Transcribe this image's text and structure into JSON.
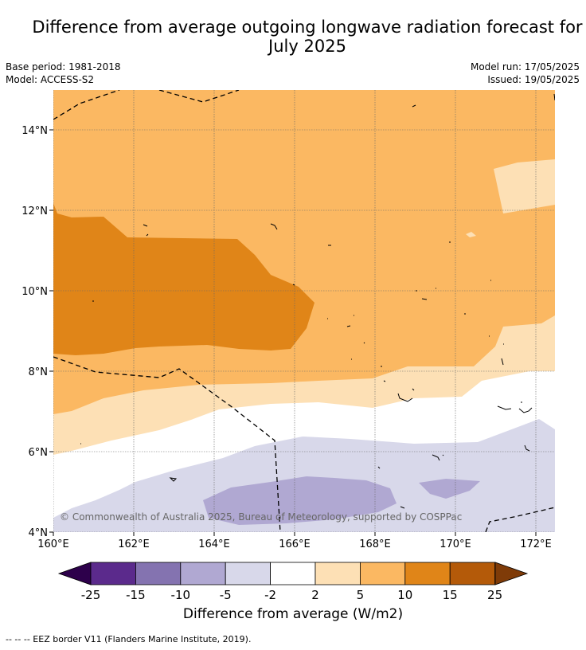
{
  "header": {
    "title_line1": "Difference from average outgoing longwave radiation forecast for",
    "title_line2": "July 2025",
    "base_period": "Base period: 1981-2018",
    "model": "Model: ACCESS-S2",
    "model_run": "Model run: 17/05/2025",
    "issued": "Issued: 19/05/2025"
  },
  "map": {
    "lat_labels": [
      "14°N",
      "12°N",
      "10°N",
      "8°N",
      "6°N",
      "4°N"
    ],
    "lon_labels": [
      "160°E",
      "162°E",
      "164°E",
      "166°E",
      "168°E",
      "170°E",
      "172°E"
    ],
    "copyright": "© Commonwealth of Australia 2025, Bureau of Meteorology, supported by COSPPac"
  },
  "colorbar": {
    "title": "Difference from average (W/m2)",
    "ticks": [
      "-25",
      "-15",
      "-10",
      "-5",
      "-2",
      "2",
      "5",
      "10",
      "15",
      "25"
    ],
    "colors": {
      "below": "#2d004b",
      "bins": [
        "#5b2a8c",
        "#8473b0",
        "#b0a8d2",
        "#d8d8ea",
        "#ffffff",
        "#fde0b5",
        "#fbb862",
        "#e08518",
        "#b45a09"
      ],
      "above": "#7f3b08"
    }
  },
  "legend": {
    "eez_note": "-- -- -- EEZ border V11 (Flanders Marine Institute, 2019)."
  }
}
